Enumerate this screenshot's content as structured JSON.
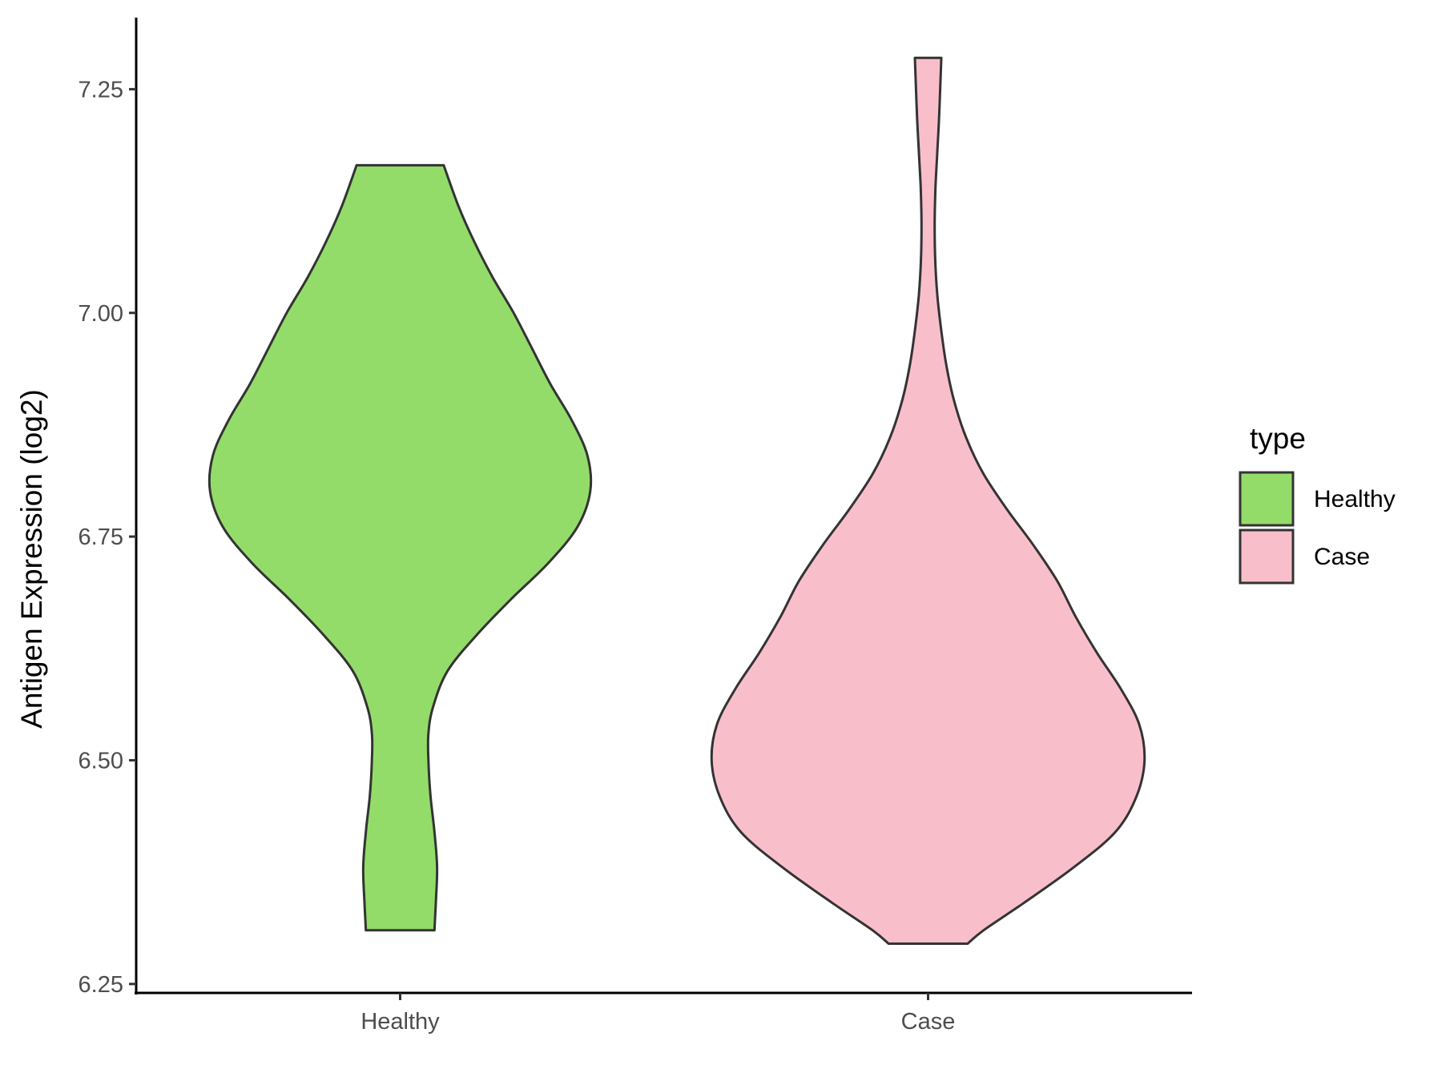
{
  "chart_data": {
    "type": "violin",
    "title": "",
    "xlabel": "",
    "ylabel": "Antigen Expression (log2)",
    "ylim": [
      6.24,
      7.33
    ],
    "yticks": [
      6.25,
      6.5,
      6.75,
      7.0,
      7.25
    ],
    "ytick_labels": [
      "6.25",
      "6.50",
      "6.75",
      "7.00",
      "7.25"
    ],
    "categories": [
      "Healthy",
      "Case"
    ],
    "grid": false,
    "legend": {
      "title": "type",
      "placement": "right",
      "entries": [
        "Healthy",
        "Case"
      ]
    },
    "series": [
      {
        "category": "Healthy",
        "color": "#93dc6a",
        "min": 6.31,
        "max": 7.165,
        "profile": [
          [
            6.31,
            0.13
          ],
          [
            6.34,
            0.135
          ],
          [
            6.38,
            0.14
          ],
          [
            6.42,
            0.13
          ],
          [
            6.46,
            0.115
          ],
          [
            6.5,
            0.107
          ],
          [
            6.53,
            0.107
          ],
          [
            6.56,
            0.125
          ],
          [
            6.6,
            0.18
          ],
          [
            6.64,
            0.29
          ],
          [
            6.68,
            0.42
          ],
          [
            6.72,
            0.56
          ],
          [
            6.76,
            0.67
          ],
          [
            6.8,
            0.72
          ],
          [
            6.84,
            0.71
          ],
          [
            6.88,
            0.65
          ],
          [
            6.92,
            0.57
          ],
          [
            6.96,
            0.5
          ],
          [
            7.0,
            0.43
          ],
          [
            7.04,
            0.35
          ],
          [
            7.08,
            0.28
          ],
          [
            7.12,
            0.22
          ],
          [
            7.165,
            0.165
          ]
        ]
      },
      {
        "category": "Case",
        "color": "#f8bfcb",
        "min": 6.295,
        "max": 7.285,
        "profile": [
          [
            6.295,
            0.15
          ],
          [
            6.31,
            0.21
          ],
          [
            6.34,
            0.36
          ],
          [
            6.38,
            0.55
          ],
          [
            6.42,
            0.71
          ],
          [
            6.46,
            0.79
          ],
          [
            6.5,
            0.82
          ],
          [
            6.54,
            0.8
          ],
          [
            6.58,
            0.73
          ],
          [
            6.62,
            0.64
          ],
          [
            6.66,
            0.56
          ],
          [
            6.7,
            0.49
          ],
          [
            6.74,
            0.4
          ],
          [
            6.78,
            0.3
          ],
          [
            6.82,
            0.21
          ],
          [
            6.86,
            0.145
          ],
          [
            6.9,
            0.1
          ],
          [
            6.94,
            0.07
          ],
          [
            6.98,
            0.05
          ],
          [
            7.02,
            0.035
          ],
          [
            7.06,
            0.027
          ],
          [
            7.1,
            0.025
          ],
          [
            7.14,
            0.028
          ],
          [
            7.18,
            0.035
          ],
          [
            7.22,
            0.042
          ],
          [
            7.26,
            0.047
          ],
          [
            7.285,
            0.05
          ]
        ]
      }
    ]
  }
}
